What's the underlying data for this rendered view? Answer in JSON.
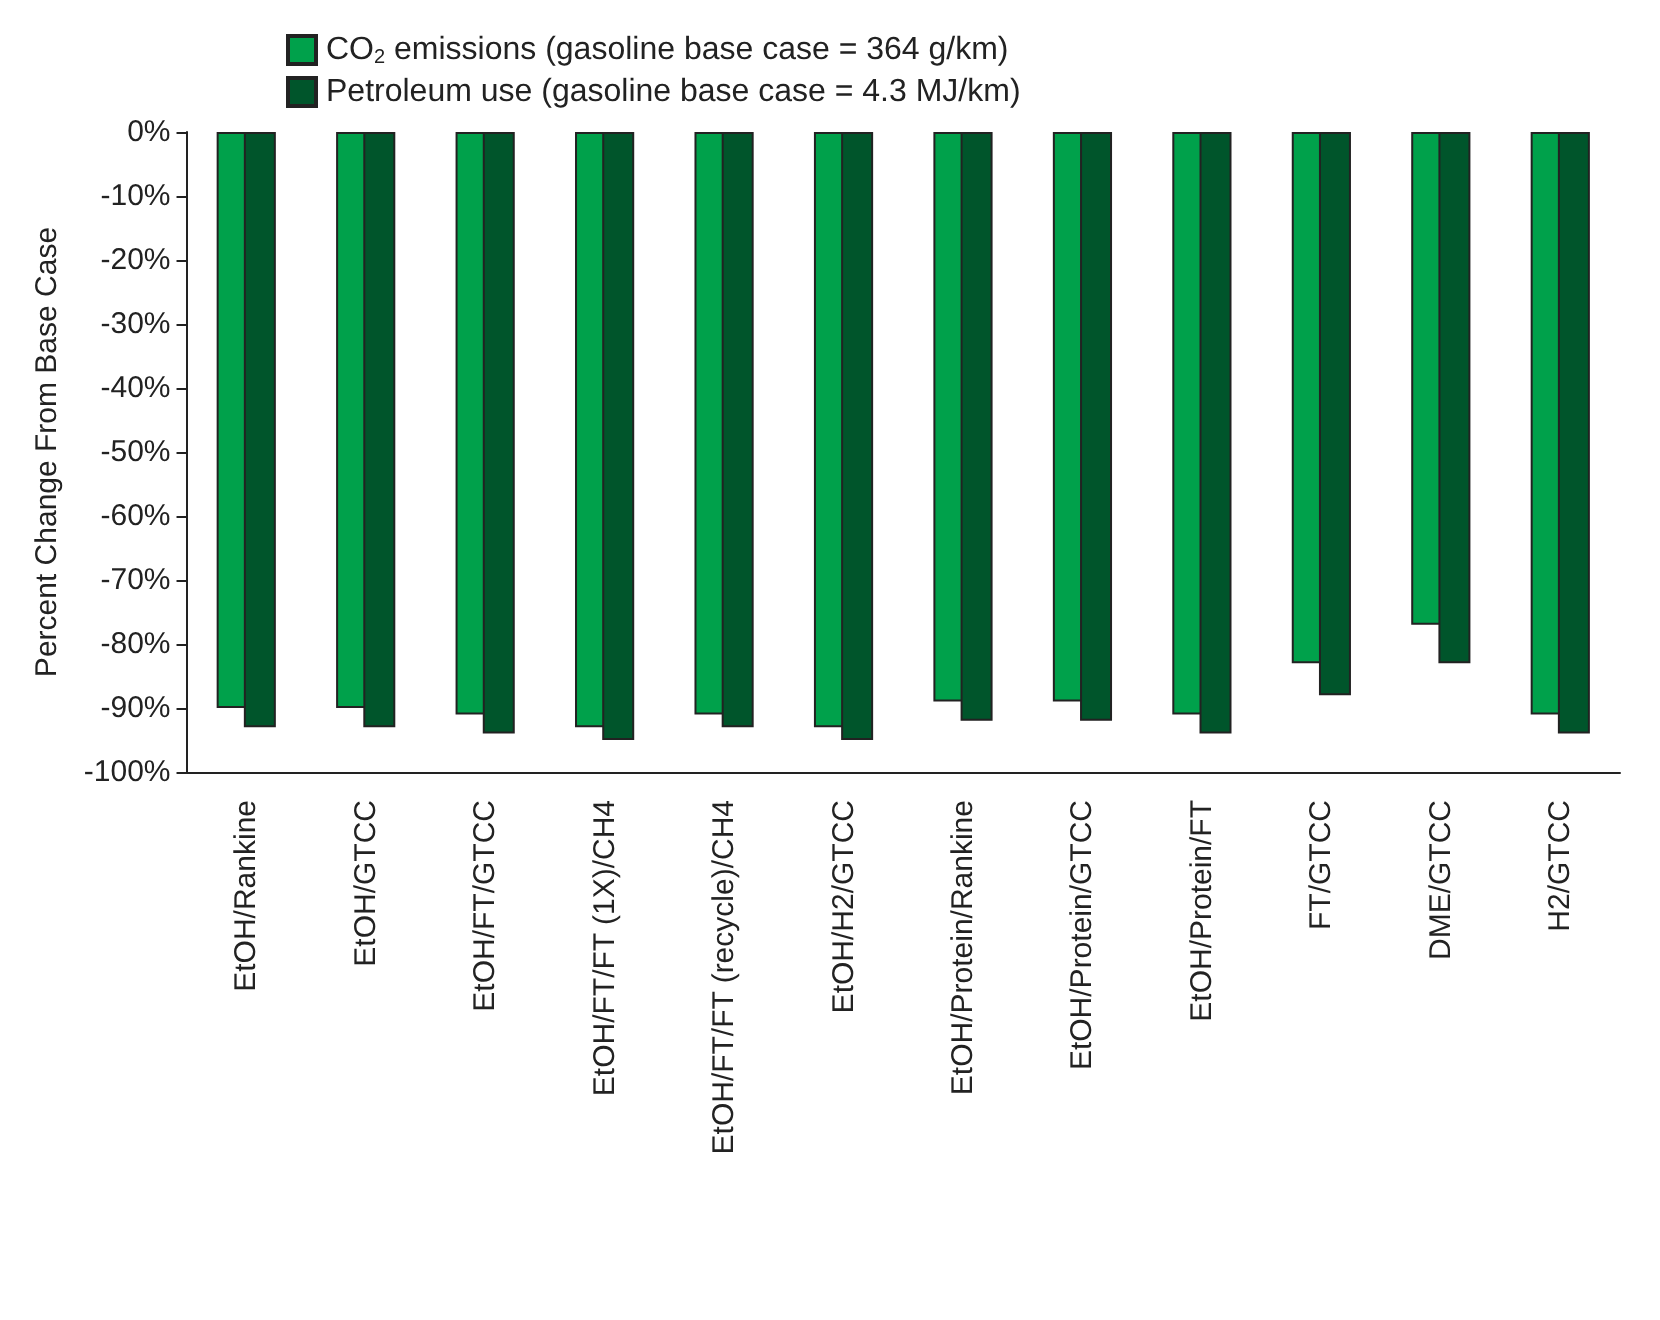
{
  "chart_data": {
    "type": "bar",
    "ylabel": "Percent Change From Base Case",
    "categories": [
      "EtOH/Rankine",
      "EtOH/GTCC",
      "EtOH/FT/GTCC",
      "EtOH/FT/FT (1X)/CH4",
      "EtOH/FT/FT (recycle)/CH4",
      "EtOH/H2/GTCC",
      "EtOH/Protein/Rankine",
      "EtOH/Protein/GTCC",
      "EtOH/Protein/FT",
      "FT/GTCC",
      "DME/GTCC",
      "H2/GTCC"
    ],
    "series": [
      {
        "name": "CO$_{2}$ emissions (gasoline base case = 364 g/km)",
        "color": "#00a14b",
        "values": [
          -90,
          -90,
          -91,
          -93,
          -91,
          -93,
          -89,
          -89,
          -91,
          -83,
          -77,
          -91
        ]
      },
      {
        "name": "Petroleum use (gasoline base case = 4.3 MJ/km)",
        "color": "#00552b",
        "values": [
          -93,
          -93,
          -94,
          -95,
          -93,
          -95,
          -92,
          -92,
          -94,
          -88,
          -83,
          -94
        ]
      }
    ],
    "ylim": [
      -100,
      0
    ],
    "yticks": [
      {
        "value": 0,
        "label": "0%"
      },
      {
        "value": -10,
        "label": "-10%"
      },
      {
        "value": -20,
        "label": "-20%"
      },
      {
        "value": -30,
        "label": "-30%"
      },
      {
        "value": -40,
        "label": "-40%"
      },
      {
        "value": -50,
        "label": "-50%"
      },
      {
        "value": -60,
        "label": "-60%"
      },
      {
        "value": -70,
        "label": "-70%"
      },
      {
        "value": -80,
        "label": "-80%"
      },
      {
        "value": -90,
        "label": "-90%"
      },
      {
        "value": -100,
        "label": "-100%"
      }
    ],
    "grid": false,
    "legend": "top left"
  }
}
